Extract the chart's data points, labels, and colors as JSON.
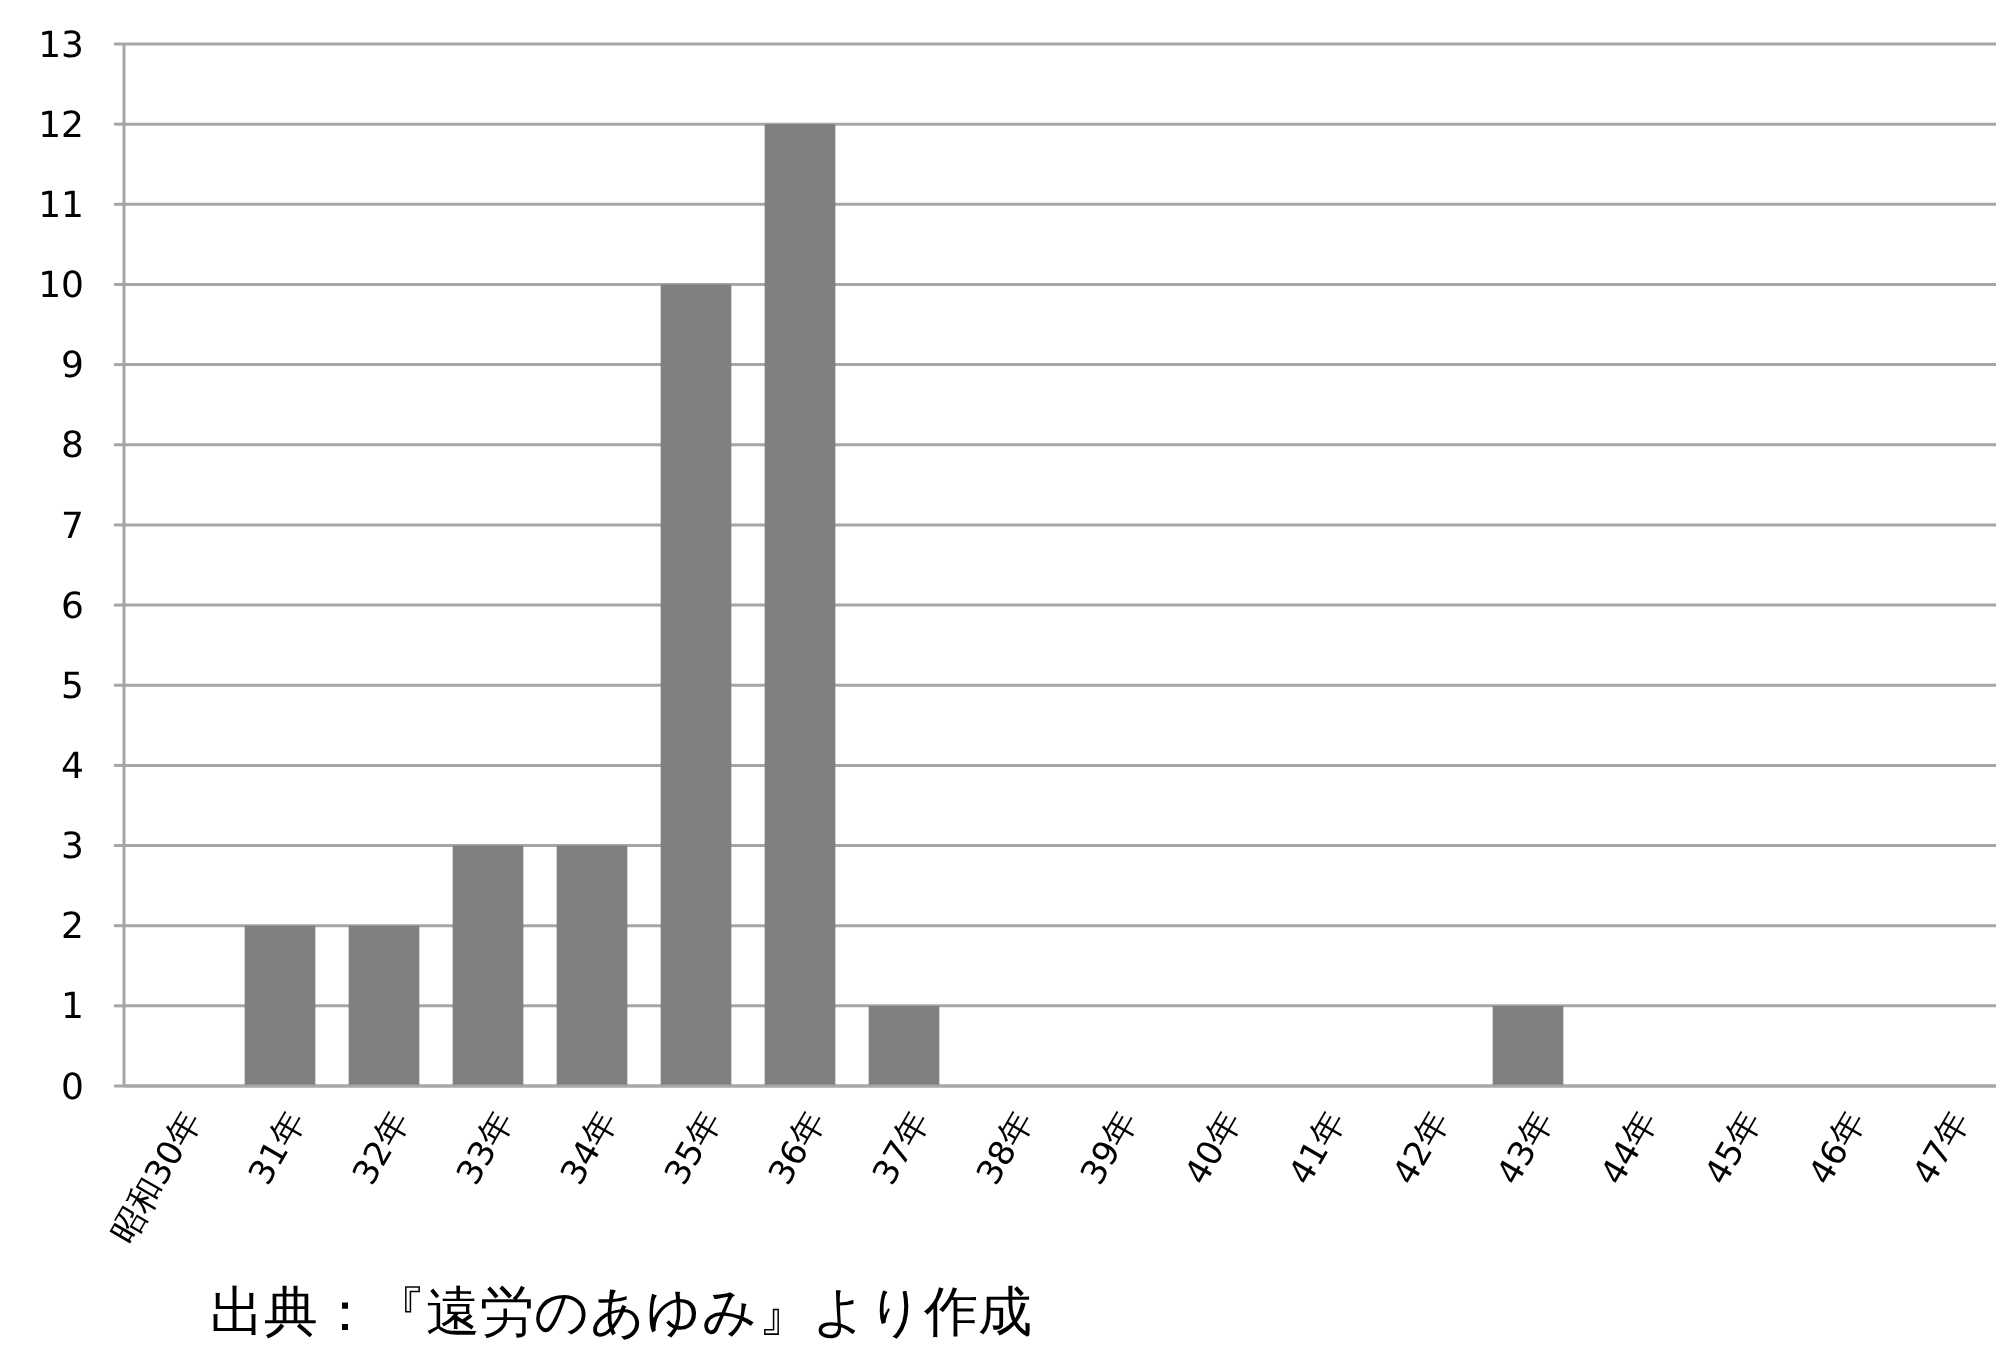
{
  "chart_data": {
    "type": "bar",
    "categories": [
      "昭和30年",
      "31年",
      "32年",
      "33年",
      "34年",
      "35年",
      "36年",
      "37年",
      "38年",
      "39年",
      "40年",
      "41年",
      "42年",
      "43年",
      "44年",
      "45年",
      "46年",
      "47年"
    ],
    "values": [
      0,
      2,
      2,
      3,
      3,
      10,
      12,
      1,
      0,
      0,
      0,
      0,
      0,
      1,
      0,
      0,
      0,
      0
    ],
    "color": "#808080",
    "ylim": [
      0,
      13
    ],
    "yticks": [
      0,
      1,
      2,
      3,
      4,
      5,
      6,
      7,
      8,
      9,
      10,
      11,
      12,
      13
    ],
    "grid": "y",
    "annotations": [
      "出典：『遠労のあゆみ』より作成"
    ]
  }
}
